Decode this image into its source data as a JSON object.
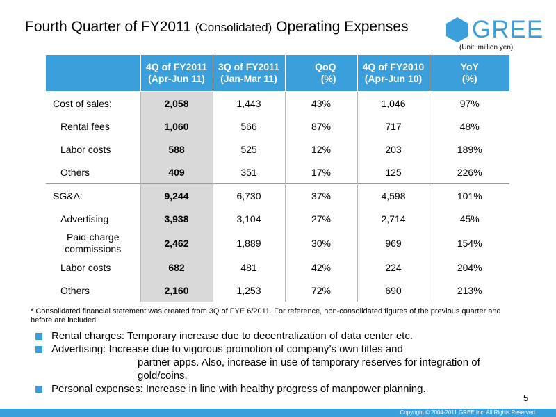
{
  "header": {
    "title_main": "Fourth Quarter of FY2011",
    "title_sub": "(Consolidated)",
    "title_end": "Operating Expenses",
    "logo_text": "GREE",
    "unit": "(Unit: million yen)"
  },
  "table": {
    "columns": [
      {
        "line1": "4Q of FY2011",
        "line2": "(Apr-Jun 11)"
      },
      {
        "line1": "3Q of FY2011",
        "line2": "(Jan-Mar 11)"
      },
      {
        "line1": "QoQ",
        "line2": "(%)"
      },
      {
        "line1": "4Q of FY2010",
        "line2": "(Apr-Jun 10)"
      },
      {
        "line1": "YoY",
        "line2": "(%)"
      }
    ],
    "rows": [
      {
        "label": "Cost of sales:",
        "values": [
          "2,058",
          "1,443",
          "43%",
          "1,046",
          "97%"
        ]
      },
      {
        "label": "Rental fees",
        "values": [
          "1,060",
          "566",
          "87%",
          "717",
          "48%"
        ]
      },
      {
        "label": "Labor costs",
        "values": [
          "588",
          "525",
          "12%",
          "203",
          "189%"
        ]
      },
      {
        "label": "Others",
        "values": [
          "409",
          "351",
          "17%",
          "125",
          "226%"
        ]
      },
      {
        "label": "SG&A:",
        "values": [
          "9,244",
          "6,730",
          "37%",
          "4,598",
          "101%"
        ]
      },
      {
        "label": "Advertising",
        "values": [
          "3,938",
          "3,104",
          "27%",
          "2,714",
          "45%"
        ]
      },
      {
        "label_line1": "Paid-charge",
        "label_line2": "commissions",
        "values": [
          "2,462",
          "1,889",
          "30%",
          "969",
          "154%"
        ]
      },
      {
        "label": "Labor costs",
        "values": [
          "682",
          "481",
          "42%",
          "224",
          "204%"
        ]
      },
      {
        "label": "Others",
        "values": [
          "2,160",
          "1,253",
          "72%",
          "690",
          "213%"
        ]
      }
    ]
  },
  "note": "* Consolidated financial statement was created from 3Q of FYE 6/2011. For reference, non-consolidated figures of the previous quarter and before are included.",
  "bullets": {
    "rental": "Rental charges: Temporary increase due to decentralization of data center etc.",
    "advertising_1": "Advertising: Increase due to vigorous promotion of company’s own titles and",
    "advertising_2": "partner apps. Also, increase in use of temporary reserves for integration of",
    "advertising_3": "gold/coins.",
    "personal": "Personal expenses: Increase in line with healthy progress of manpower planning."
  },
  "page_number": "5",
  "copyright": "Copyright © 2004-2011 GREE,Inc. All Rights Reserved.",
  "colors": {
    "accent": "#3a9fdb",
    "highlight_column": "#d9d9d9"
  },
  "icons": [
    "gree-hexagon-logo-icon",
    "square-bullet-icon"
  ]
}
